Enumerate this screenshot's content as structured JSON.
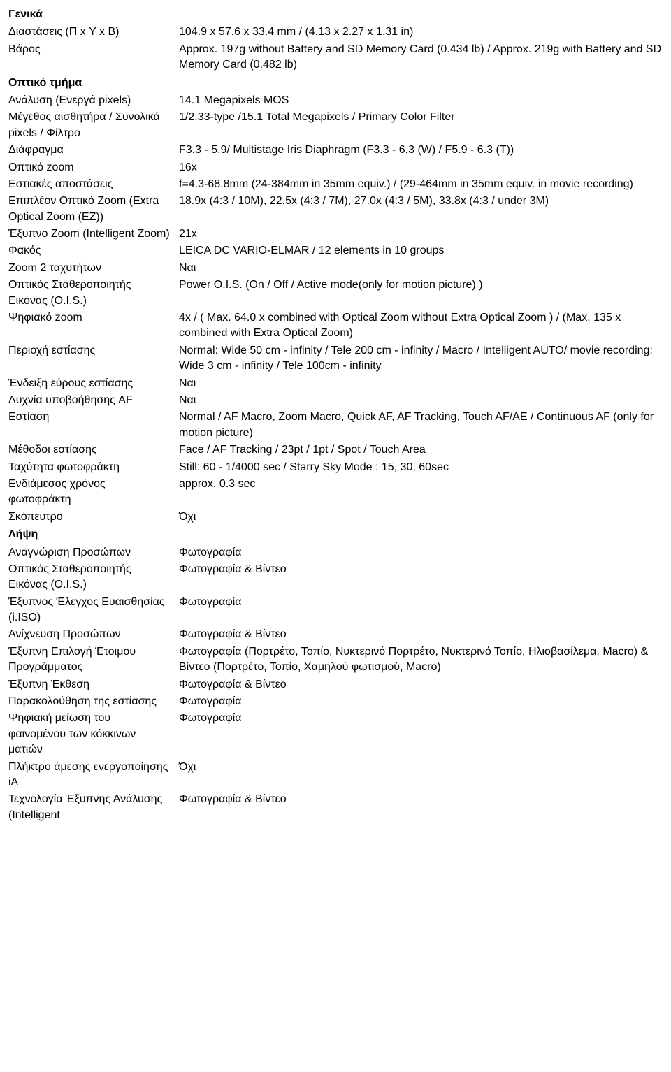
{
  "sections": {
    "general": {
      "header": "Γενικά",
      "rows": [
        {
          "label": "Διαστάσεις (Π x Υ x Β)",
          "value": "104.9 x 57.6 x 33.4 mm / (4.13 x 2.27 x 1.31 in)"
        },
        {
          "label": "Βάρος",
          "value": "Approx. 197g without Battery and SD Memory Card (0.434 lb) / Approx. 219g with Battery and SD Memory Card (0.482 lb)"
        }
      ]
    },
    "optical": {
      "header": "Οπτικό τμήμα",
      "rows": [
        {
          "label": "Ανάλυση (Ενεργά pixels)",
          "value": "14.1 Megapixels MOS"
        },
        {
          "label": "Μέγεθος αισθητήρα / Συνολικά pixels / Φίλτρο",
          "value": "1/2.33-type /15.1 Total Megapixels / Primary Color Filter"
        },
        {
          "label": "Διάφραγμα",
          "value": "F3.3 - 5.9/ Multistage Iris Diaphragm (F3.3 - 6.3 (W) / F5.9 - 6.3 (T))"
        },
        {
          "label": "Οπτικό zoom",
          "value": "16x"
        },
        {
          "label": "Εστιακές αποστάσεις",
          "value": "f=4.3-68.8mm (24-384mm in 35mm equiv.) / (29-464mm in 35mm equiv. in movie recording)"
        },
        {
          "label": "Επιπλέον Οπτικό Zoom (Extra Optical Zoom (EZ))",
          "value": "18.9x (4:3 / 10M), 22.5x (4:3 / 7M), 27.0x (4:3 / 5M), 33.8x (4:3 / under 3M)"
        },
        {
          "label": "Έξυπνο Zoom (Intelligent Zoom)",
          "value": "21x"
        },
        {
          "label": "Φακός",
          "value": "LEICA DC VARIO-ELMAR / 12 elements in 10 groups"
        },
        {
          "label": "Zoom 2 ταχυτήτων",
          "value": "Ναι"
        },
        {
          "label": "Οπτικός Σταθεροποιητής Εικόνας (O.I.S.)",
          "value": "Power O.I.S. (On / Off / Active mode(only for motion picture) )"
        },
        {
          "label": "Ψηφιακό zoom",
          "value": "4x / ( Max. 64.0 x combined with Optical Zoom without Extra Optical Zoom ) / (Max. 135 x combined with Extra Optical Zoom)"
        },
        {
          "label": "Περιοχή εστίασης",
          "value": "Normal: Wide 50 cm - infinity / Tele 200 cm - infinity / Macro / Intelligent AUTO/ movie recording: Wide 3 cm - infinity / Tele 100cm - infinity"
        },
        {
          "label": "Ένδειξη εύρους εστίασης",
          "value": "Ναι"
        },
        {
          "label": "Λυχνία υποβοήθησης AF",
          "value": "Ναι"
        },
        {
          "label": "Εστίαση",
          "value": "Normal / AF Macro, Zoom Macro, Quick AF, AF Tracking, Touch AF/AE / Continuous AF (only for motion picture)"
        },
        {
          "label": "Μέθοδοι εστίασης",
          "value": "Face / AF Tracking / 23pt / 1pt / Spot / Touch Area"
        },
        {
          "label": "Ταχύτητα φωτοφράκτη",
          "value": "Still: 60 - 1/4000 sec / Starry Sky Mode : 15, 30, 60sec"
        },
        {
          "label": "Ενδιάμεσος χρόνος φωτοφράκτη",
          "value": "approx. 0.3 sec"
        },
        {
          "label": "Σκόπευτρο",
          "value": "Όχι"
        }
      ]
    },
    "capture": {
      "header": "Λήψη",
      "rows": [
        {
          "label": "Αναγνώριση Προσώπων",
          "value": "Φωτογραφία"
        },
        {
          "label": "Οπτικός Σταθεροποιητής Εικόνας (O.I.S.)",
          "value": "Φωτογραφία & Βίντεο"
        },
        {
          "label": "Έξυπνος Έλεγχος Ευαισθησίας (i.ISO)",
          "value": "Φωτογραφία"
        },
        {
          "label": "Ανίχνευση Προσώπων",
          "value": "Φωτογραφία & Βίντεο"
        },
        {
          "label": "Έξυπνη Επιλογή Έτοιμου Προγράμματος",
          "value": "Φωτογραφία (Πορτρέτο, Τοπίο, Νυκτερινό Πορτρέτο, Νυκτερινό Τοπίο, Ηλιοβασίλεμα, Macro) & Βίντεο (Πορτρέτο, Τοπίο, Χαμηλού φωτισμού, Macro)"
        },
        {
          "label": "Έξυπνη Έκθεση",
          "value": "Φωτογραφία & Βίντεο"
        },
        {
          "label": "Παρακολούθηση της εστίασης",
          "value": "Φωτογραφία"
        },
        {
          "label": "Ψηφιακή μείωση του φαινομένου των κόκκινων ματιών",
          "value": "Φωτογραφία"
        },
        {
          "label": "Πλήκτρο άμεσης ενεργοποίησης iA",
          "value": "Όχι"
        },
        {
          "label": "Τεχνολογία Έξυπνης Ανάλυσης (Intelligent",
          "value": "Φωτογραφία & Βίντεο"
        }
      ]
    }
  }
}
